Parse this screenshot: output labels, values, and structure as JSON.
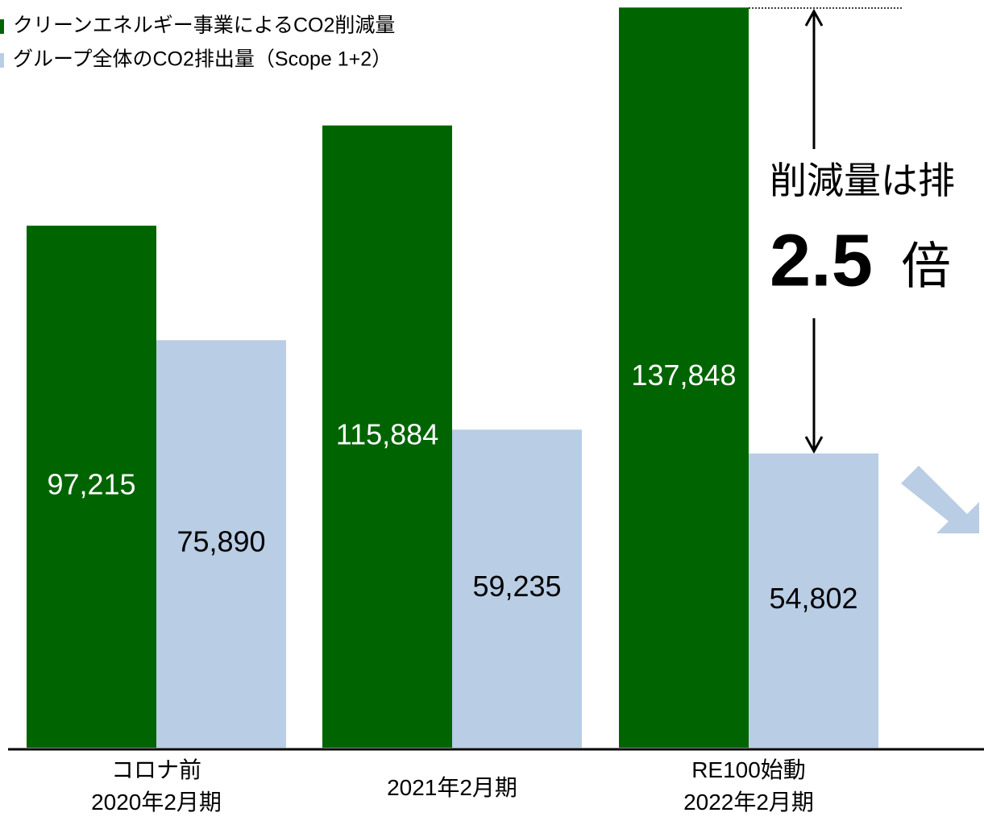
{
  "chart_data": {
    "type": "bar",
    "categories": [
      "コロナ前\n2020年2月期",
      "2021年2月期",
      "RE100始動\n2022年2月期"
    ],
    "series": [
      {
        "name": "クリーンエネルギー事業によるCO2削減量",
        "color": "#006400",
        "values": [
          97215,
          115884,
          137848
        ],
        "value_labels": [
          "97,215",
          "115,884",
          "137,848"
        ]
      },
      {
        "name": "グループ全体のCO2排出量（Scope 1+2）",
        "color": "#b9cde4",
        "values": [
          75890,
          59235,
          54802
        ],
        "value_labels": [
          "75,890",
          "59,235",
          "54,802"
        ]
      }
    ],
    "ylim": [
      0,
      140000
    ],
    "legend": "upper left",
    "annotations": [
      "削減量は排",
      "2.5",
      "倍"
    ]
  }
}
